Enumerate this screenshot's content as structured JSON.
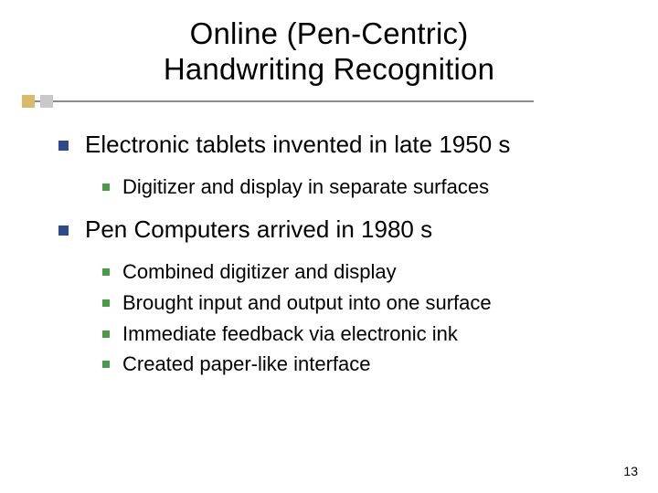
{
  "slide": {
    "title_line1": "Online (Pen-Centric)",
    "title_line2": "Handwriting Recognition",
    "page_number": "13"
  },
  "content": {
    "items": [
      {
        "text": "Electronic tablets invented in late 1950 s",
        "children": [
          {
            "text": "Digitizer and display in separate surfaces"
          }
        ]
      },
      {
        "text": "Pen Computers arrived in 1980 s",
        "children": [
          {
            "text": "Combined digitizer and display"
          },
          {
            "text": "Brought input and output into one surface"
          },
          {
            "text": "Immediate feedback via electronic ink"
          },
          {
            "text": "Created paper-like interface"
          }
        ]
      }
    ]
  },
  "style": {
    "title_fontsize": 33,
    "level1_fontsize": 26,
    "level2_fontsize": 22,
    "pagenum_fontsize": 14,
    "bullet_level1_color": "#2f4a8a",
    "bullet_level2_color": "#4a9a4a",
    "deco_gold": "#d9b96a",
    "deco_gray": "#c8c8c8",
    "deco_line": "#8b8b8b",
    "background": "#ffffff",
    "text_color": "#000000"
  }
}
